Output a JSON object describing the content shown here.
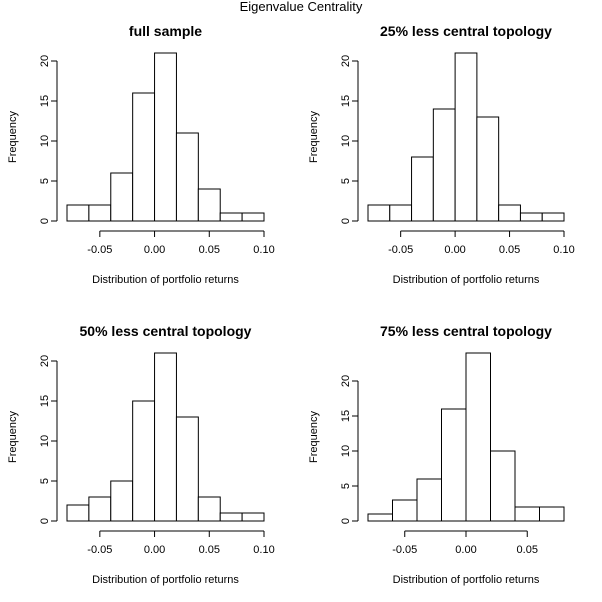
{
  "title": "Eigenvalue Centrality",
  "chart_data": [
    {
      "type": "bar",
      "title": "full sample",
      "xlabel": "Distribution of portfolio returns",
      "ylabel": "Frequency",
      "bin_edges": [
        -0.08,
        -0.06,
        -0.04,
        -0.02,
        0.0,
        0.02,
        0.04,
        0.06,
        0.08,
        0.1
      ],
      "values": [
        2,
        2,
        6,
        16,
        21,
        11,
        4,
        1,
        1
      ],
      "x_ticks": [
        -0.05,
        0.0,
        0.05,
        0.1
      ],
      "x_tick_labels": [
        "-0.05",
        "0.00",
        "0.05",
        "0.10"
      ],
      "y_ticks": [
        0,
        5,
        10,
        15,
        20
      ],
      "y_tick_labels": [
        "0",
        "5",
        "10",
        "15",
        "20"
      ],
      "xlim": [
        -0.08,
        0.1
      ],
      "ylim": [
        0,
        21
      ]
    },
    {
      "type": "bar",
      "title": "25% less central topology",
      "xlabel": "Distribution of portfolio returns",
      "ylabel": "Frequency",
      "bin_edges": [
        -0.08,
        -0.06,
        -0.04,
        -0.02,
        0.0,
        0.02,
        0.04,
        0.06,
        0.08,
        0.1
      ],
      "values": [
        2,
        2,
        8,
        14,
        21,
        13,
        2,
        1,
        1
      ],
      "x_ticks": [
        -0.05,
        0.0,
        0.05,
        0.1
      ],
      "x_tick_labels": [
        "-0.05",
        "0.00",
        "0.05",
        "0.10"
      ],
      "y_ticks": [
        0,
        5,
        10,
        15,
        20
      ],
      "y_tick_labels": [
        "0",
        "5",
        "10",
        "15",
        "20"
      ],
      "xlim": [
        -0.08,
        0.1
      ],
      "ylim": [
        0,
        21
      ]
    },
    {
      "type": "bar",
      "title": "50% less central topology",
      "xlabel": "Distribution of portfolio returns",
      "ylabel": "Frequency",
      "bin_edges": [
        -0.08,
        -0.06,
        -0.04,
        -0.02,
        0.0,
        0.02,
        0.04,
        0.06,
        0.08,
        0.1
      ],
      "values": [
        2,
        3,
        5,
        15,
        21,
        13,
        3,
        1,
        1
      ],
      "x_ticks": [
        -0.05,
        0.0,
        0.05,
        0.1
      ],
      "x_tick_labels": [
        "-0.05",
        "0.00",
        "0.05",
        "0.10"
      ],
      "y_ticks": [
        0,
        5,
        10,
        15,
        20
      ],
      "y_tick_labels": [
        "0",
        "5",
        "10",
        "15",
        "20"
      ],
      "xlim": [
        -0.08,
        0.1
      ],
      "ylim": [
        0,
        21
      ]
    },
    {
      "type": "bar",
      "title": "75% less central topology",
      "xlabel": "Distribution of portfolio returns",
      "ylabel": "Frequency",
      "bin_edges": [
        -0.08,
        -0.06,
        -0.04,
        -0.02,
        0.0,
        0.02,
        0.04,
        0.06,
        0.08
      ],
      "values": [
        1,
        3,
        6,
        16,
        24,
        10,
        2,
        2
      ],
      "x_ticks": [
        -0.05,
        0.0,
        0.05
      ],
      "x_tick_labels": [
        "-0.05",
        "0.00",
        "0.05"
      ],
      "y_ticks": [
        0,
        5,
        10,
        15,
        20
      ],
      "y_tick_labels": [
        "0",
        "5",
        "10",
        "15",
        "20"
      ],
      "xlim": [
        -0.08,
        0.08
      ],
      "ylim": [
        0,
        24
      ]
    }
  ]
}
